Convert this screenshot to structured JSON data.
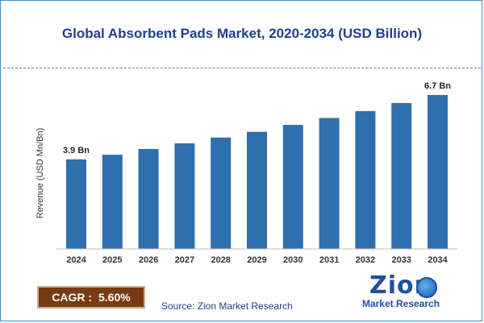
{
  "chart_data": {
    "type": "bar",
    "title": "Global Absorbent Pads Market, 2020-2034 (USD Billion)",
    "ylabel": "Revenue (USD Mn/Bn)",
    "xlabel": "",
    "categories": [
      "2024",
      "2025",
      "2026",
      "2027",
      "2028",
      "2029",
      "2030",
      "2031",
      "2032",
      "2033",
      "2034"
    ],
    "values": [
      3.9,
      4.1,
      4.35,
      4.6,
      4.85,
      5.1,
      5.4,
      5.7,
      6.0,
      6.35,
      6.7
    ],
    "ylim": [
      0,
      6.7
    ],
    "data_labels": [
      {
        "index": 0,
        "text": "3.9 Bn"
      },
      {
        "index": 10,
        "text": "6.7 Bn"
      }
    ],
    "bar_color": "#2e6fad",
    "grid": false,
    "legend": "none"
  },
  "cagr": {
    "label": "CAGR :",
    "value": "5.60%"
  },
  "source": "Source: Zion Market Research",
  "logo": {
    "word": "Zion",
    "sub_left": "Market",
    "sub_sep": ".",
    "sub_right": "Research"
  },
  "colors": {
    "title": "#1f3f8f",
    "frame": "#3a8fd0",
    "cagr_bg": "#7a3a10"
  }
}
